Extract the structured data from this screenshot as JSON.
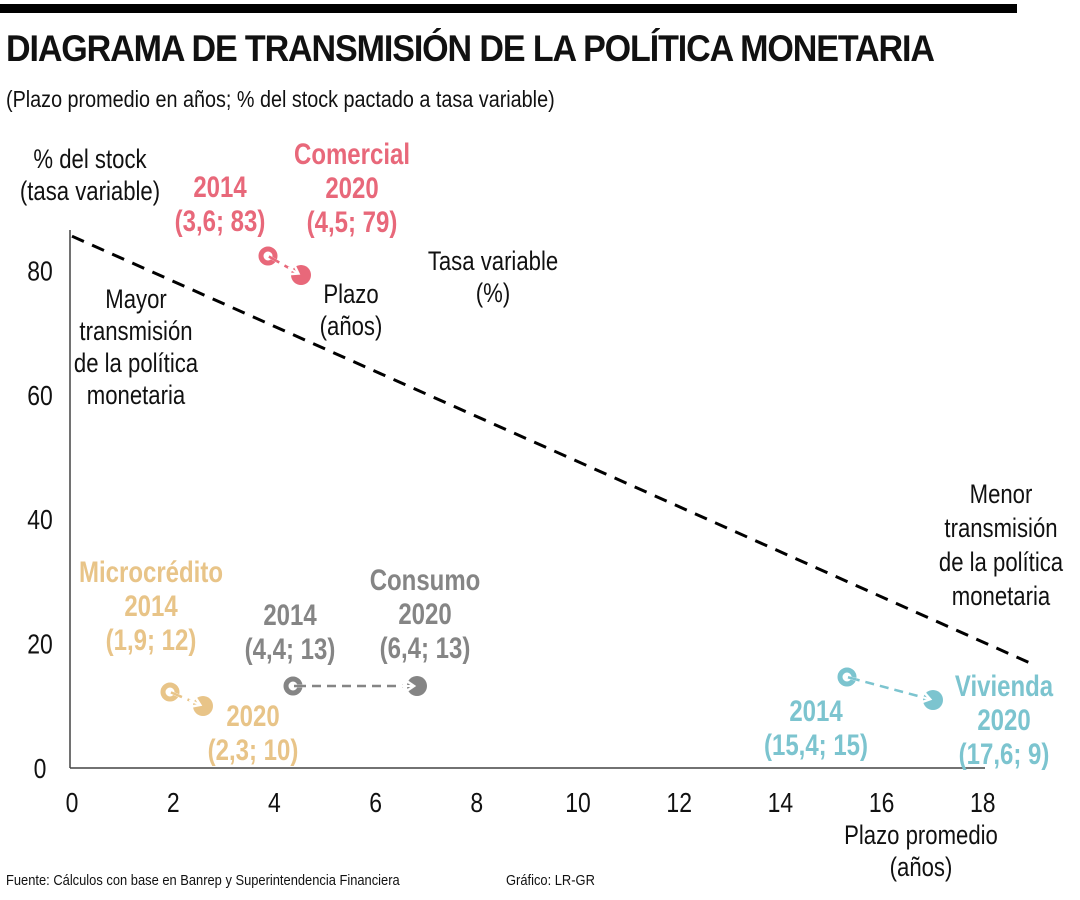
{
  "header": {
    "title": "DIAGRAMA DE TRANSMISIÓN DE LA POLÍTICA MONETARIA",
    "subtitle": "(Plazo promedio en años; % del stock pactado a tasa variable)"
  },
  "footer": {
    "source": "Fuente: Cálculos con base en Banrep y Superintendencia Financiera",
    "credit": "Gráfico: LR-GR"
  },
  "chart_data": {
    "type": "scatter",
    "title": "DIAGRAMA DE TRANSMISIÓN DE LA POLÍTICA MONETARIA",
    "subtitle": "(Plazo promedio en años; % del stock pactado a tasa variable)",
    "xlabel": [
      "Plazo promedio",
      "(años)"
    ],
    "ylabel": [
      "% del stock",
      "(tasa variable)"
    ],
    "xlim": [
      0,
      19
    ],
    "ylim": [
      0,
      90
    ],
    "x_ticks": [
      0,
      2,
      4,
      6,
      8,
      10,
      12,
      14,
      16,
      18
    ],
    "y_ticks": [
      0,
      20,
      40,
      60,
      80
    ],
    "grid": false,
    "legend_note": {
      "x_label": [
        "Plazo",
        "(años)"
      ],
      "y_label": [
        "Tasa variable",
        "(%)"
      ]
    },
    "threshold_line": {
      "style": "dashed",
      "from": [
        0,
        85.5
      ],
      "to": [
        18.9,
        17
      ]
    },
    "annotations": {
      "upper_left": [
        "Mayor",
        "transmisión",
        "de la política",
        "monetaria"
      ],
      "lower_right": [
        "Menor",
        "transmisión",
        "de la política",
        "monetaria"
      ]
    },
    "series": [
      {
        "name": "Comercial",
        "color": "#E8687A",
        "points": [
          {
            "year": "2014",
            "x": 3.6,
            "y": 83,
            "label": "(3,6; 83)"
          },
          {
            "year": "2020",
            "x": 4.5,
            "y": 79,
            "label": "(4,5; 79)"
          }
        ]
      },
      {
        "name": "Microcrédito",
        "color": "#E8C488",
        "points": [
          {
            "year": "2014",
            "x": 1.9,
            "y": 12,
            "label": "(1,9; 12)"
          },
          {
            "year": "2020",
            "x": 2.3,
            "y": 10,
            "label": "(2,3; 10)"
          }
        ]
      },
      {
        "name": "Consumo",
        "color": "#858585",
        "points": [
          {
            "year": "2014",
            "x": 4.4,
            "y": 13,
            "label": "(4,4; 13)"
          },
          {
            "year": "2020",
            "x": 6.4,
            "y": 13,
            "label": "(6,4; 13)"
          }
        ]
      },
      {
        "name": "Vivienda",
        "color": "#7CC4CF",
        "points": [
          {
            "year": "2014",
            "x": 15.4,
            "y": 15,
            "label": "(15,4; 15)"
          },
          {
            "year": "2020",
            "x": 17.6,
            "y": 9,
            "label": "(17,6; 9)"
          }
        ]
      }
    ]
  }
}
